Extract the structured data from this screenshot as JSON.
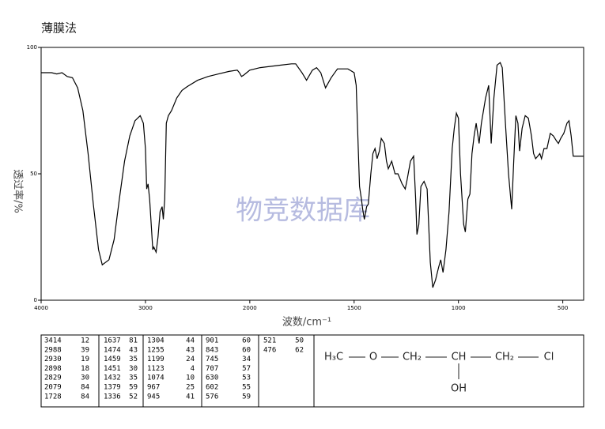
{
  "chart_data": {
    "type": "line",
    "title": "薄膜法",
    "watermark": "物竞数据库",
    "xlabel": "波数/cm⁻¹",
    "ylabel": "透过率/%",
    "xlim": [
      4000,
      400
    ],
    "xbreak": 2000,
    "xbreak_scale": 2,
    "xticks": [
      4000,
      3000,
      2000,
      1500,
      1000,
      500
    ],
    "ylim": [
      0,
      100
    ],
    "yticks": [
      0,
      50,
      100
    ],
    "color": "#000000",
    "x": [
      4000,
      3900,
      3850,
      3800,
      3750,
      3700,
      3650,
      3600,
      3550,
      3500,
      3450,
      3414,
      3350,
      3300,
      3250,
      3200,
      3150,
      3100,
      3050,
      3020,
      3000,
      2988,
      2975,
      2960,
      2945,
      2930,
      2920,
      2898,
      2880,
      2860,
      2840,
      2829,
      2815,
      2800,
      2780,
      2750,
      2700,
      2650,
      2600,
      2500,
      2400,
      2300,
      2200,
      2120,
      2100,
      2079,
      2060,
      2030,
      2000,
      1950,
      1900,
      1850,
      1800,
      1780,
      1750,
      1728,
      1700,
      1680,
      1660,
      1637,
      1610,
      1580,
      1530,
      1500,
      1490,
      1480,
      1474,
      1465,
      1459,
      1451,
      1440,
      1432,
      1420,
      1410,
      1400,
      1390,
      1379,
      1370,
      1355,
      1345,
      1336,
      1320,
      1304,
      1290,
      1270,
      1255,
      1245,
      1230,
      1215,
      1205,
      1199,
      1190,
      1180,
      1165,
      1150,
      1135,
      1123,
      1110,
      1095,
      1085,
      1074,
      1060,
      1045,
      1030,
      1020,
      1010,
      1000,
      990,
      975,
      967,
      955,
      945,
      935,
      925,
      915,
      901,
      890,
      870,
      855,
      843,
      830,
      815,
      800,
      790,
      775,
      760,
      745,
      735,
      725,
      715,
      707,
      695,
      680,
      665,
      650,
      640,
      630,
      620,
      610,
      602,
      590,
      576,
      560,
      545,
      530,
      521,
      510,
      495,
      480,
      470,
      460,
      450,
      440,
      400
    ],
    "y": [
      90,
      90,
      89.5,
      90,
      88.5,
      88,
      84,
      75,
      58,
      38,
      20,
      14,
      16,
      24,
      40,
      55,
      65,
      71,
      73,
      70,
      60,
      44,
      46,
      40,
      30,
      20,
      21,
      19,
      25,
      35,
      37,
      32,
      40,
      70,
      73,
      75,
      80,
      83,
      84.5,
      87,
      88.5,
      89.5,
      90.5,
      91,
      90,
      88.5,
      89,
      90,
      91,
      92,
      92.5,
      93,
      93.5,
      93.5,
      90,
      87,
      91,
      92,
      90,
      84,
      88,
      91.5,
      91.5,
      90,
      85,
      60,
      45,
      40,
      36,
      32,
      37,
      38,
      50,
      58,
      60,
      56,
      59,
      64,
      62,
      55,
      52,
      55,
      50,
      50,
      46,
      44,
      48,
      55,
      57,
      40,
      26,
      30,
      45,
      47,
      44,
      15,
      5,
      8,
      13,
      16,
      11,
      20,
      35,
      60,
      68,
      74,
      72,
      50,
      30,
      27,
      40,
      42,
      58,
      65,
      70,
      62,
      70,
      80,
      85,
      62,
      80,
      93,
      94,
      92,
      70,
      50,
      36,
      55,
      73,
      70,
      59,
      68,
      73,
      72,
      65,
      58,
      56,
      57,
      58,
      56,
      60,
      60,
      66,
      65,
      63,
      62,
      64,
      66,
      70,
      71,
      65,
      57,
      57,
      57
    ],
    "peaks": [
      [
        [
          3414,
          12
        ],
        [
          2988,
          39
        ],
        [
          2930,
          19
        ],
        [
          2898,
          18
        ],
        [
          2829,
          30
        ],
        [
          2079,
          84
        ],
        [
          1728,
          84
        ]
      ],
      [
        [
          1637,
          81
        ],
        [
          1474,
          43
        ],
        [
          1459,
          35
        ],
        [
          1451,
          30
        ],
        [
          1432,
          35
        ],
        [
          1379,
          59
        ],
        [
          1336,
          52
        ]
      ],
      [
        [
          1304,
          44
        ],
        [
          1255,
          43
        ],
        [
          1199,
          24
        ],
        [
          1123,
          4
        ],
        [
          1074,
          10
        ],
        [
          967,
          25
        ],
        [
          945,
          41
        ]
      ],
      [
        [
          901,
          60
        ],
        [
          843,
          60
        ],
        [
          745,
          34
        ],
        [
          707,
          57
        ],
        [
          630,
          53
        ],
        [
          602,
          55
        ],
        [
          576,
          59
        ]
      ],
      [
        [
          521,
          50
        ],
        [
          476,
          62
        ]
      ]
    ],
    "structure": {
      "groups": [
        "H₃C",
        "O",
        "CH₂",
        "CH",
        "CH₂",
        "Cl"
      ],
      "substituent": "OH"
    }
  }
}
